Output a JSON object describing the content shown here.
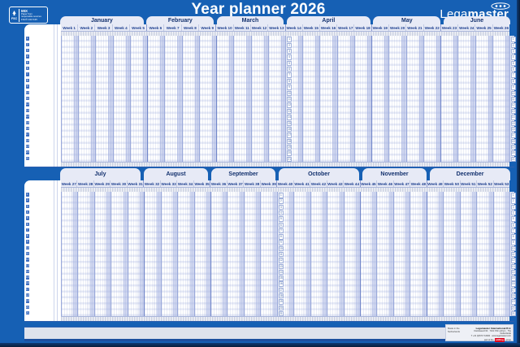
{
  "title": "Year planner 2026",
  "brand": {
    "prefix": "Lega",
    "suffix": "master"
  },
  "fsc_badge": {
    "org": "FSC",
    "label": "MIX",
    "line1": "Paper from",
    "line2": "responsible sources",
    "line3": "FSC® C017135"
  },
  "calendar": {
    "days_per_week": 7,
    "rows_per_half": 21,
    "row_numbers": [
      1,
      2,
      3,
      4,
      5,
      6,
      7,
      8,
      9,
      10,
      11,
      12,
      13,
      14,
      15,
      16,
      17,
      18,
      19,
      20,
      21
    ],
    "top_months": [
      {
        "name": "January",
        "weeks": [
          "Week 1",
          "Week 2",
          "Week 3",
          "Week 4",
          "Week 5"
        ]
      },
      {
        "name": "February",
        "weeks": [
          "Week 6",
          "Week 7",
          "Week 8",
          "Week 9"
        ]
      },
      {
        "name": "March",
        "weeks": [
          "Week 10",
          "Week 11",
          "Week 12",
          "Week 13"
        ]
      },
      {
        "name": "April",
        "weeks": [
          "Week 14",
          "Week 15",
          "Week 16",
          "Week 17",
          "Week 18"
        ]
      },
      {
        "name": "May",
        "weeks": [
          "Week 19",
          "Week 20",
          "Week 21",
          "Week 22"
        ]
      },
      {
        "name": "June",
        "weeks": [
          "Week 23",
          "Week 24",
          "Week 25",
          "Week 26"
        ]
      }
    ],
    "bottom_months": [
      {
        "name": "July",
        "weeks": [
          "Week 27",
          "Week 28",
          "Week 29",
          "Week 30",
          "Week 31"
        ]
      },
      {
        "name": "August",
        "weeks": [
          "Week 32",
          "Week 33",
          "Week 34",
          "Week 35"
        ]
      },
      {
        "name": "September",
        "weeks": [
          "Week 36",
          "Week 37",
          "Week 38",
          "Week 39"
        ]
      },
      {
        "name": "October",
        "weeks": [
          "Week 40",
          "Week 41",
          "Week 42",
          "Week 43",
          "Week 44"
        ]
      },
      {
        "name": "November",
        "weeks": [
          "Week 45",
          "Week 46",
          "Week 47",
          "Week 48"
        ]
      },
      {
        "name": "December",
        "weeks": [
          "Week 49",
          "Week 50",
          "Week 51",
          "Week 52",
          "Week 53"
        ]
      }
    ]
  },
  "footer": {
    "made_in": "Made in the Netherlands",
    "company": "Legamaster International B.V.",
    "address1": "Kwinkweerd 62 · 7241 CW Lochem · The Netherlands",
    "address2": "T +31 (0)573 713000 · www.legamaster.com",
    "part_of": "part of the",
    "edding": "edding",
    "group": "group"
  },
  "colors": {
    "background": "#1660b4",
    "dark_navy_text": "#13316e",
    "tab_background": "#e7eaf6",
    "weekend_shade": "#a7b4e2",
    "edding_red": "#e2001a"
  }
}
